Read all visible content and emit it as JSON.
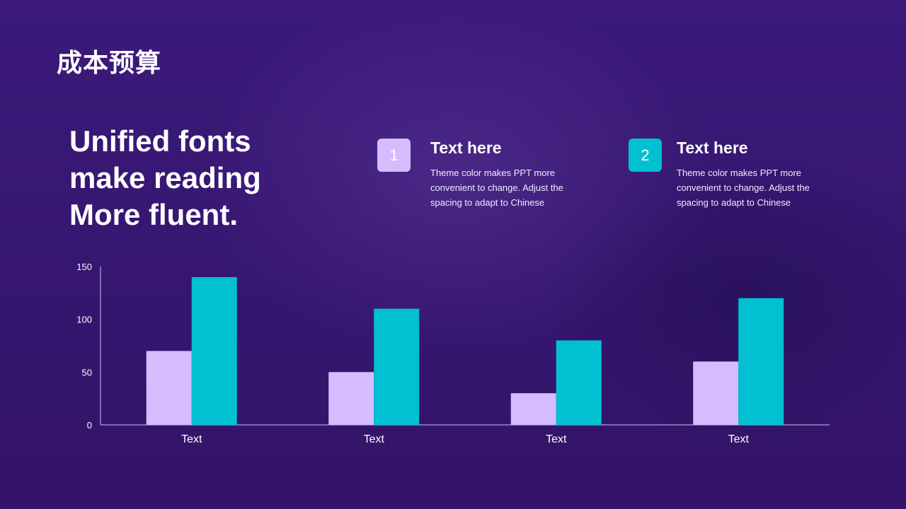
{
  "slide": {
    "title": "成本预算",
    "headline": [
      "Unified fonts",
      "make reading",
      "More fluent."
    ]
  },
  "features": [
    {
      "number": "1",
      "title": "Text here",
      "description": "Theme  color makes PPT more convenient  to change. Adjust the spacing to adapt to Chinese"
    },
    {
      "number": "2",
      "title": "Text here",
      "description": "Theme  color makes PPT more convenient  to change. Adjust the spacing to adapt to Chinese"
    }
  ],
  "colors": {
    "background": "#3a1878",
    "series_1": "#d4bcff",
    "series_2": "#00c0d2",
    "axis": "#cfc3ea"
  },
  "chart_data": {
    "type": "bar",
    "categories": [
      "Text",
      "Text",
      "Text",
      "Text"
    ],
    "series": [
      {
        "values": [
          70,
          50,
          30,
          60
        ]
      },
      {
        "values": [
          140,
          110,
          80,
          120
        ]
      }
    ],
    "ylim": [
      0,
      150
    ],
    "yticks": [
      0,
      50,
      100,
      150
    ],
    "grid": false,
    "legend": "none"
  }
}
